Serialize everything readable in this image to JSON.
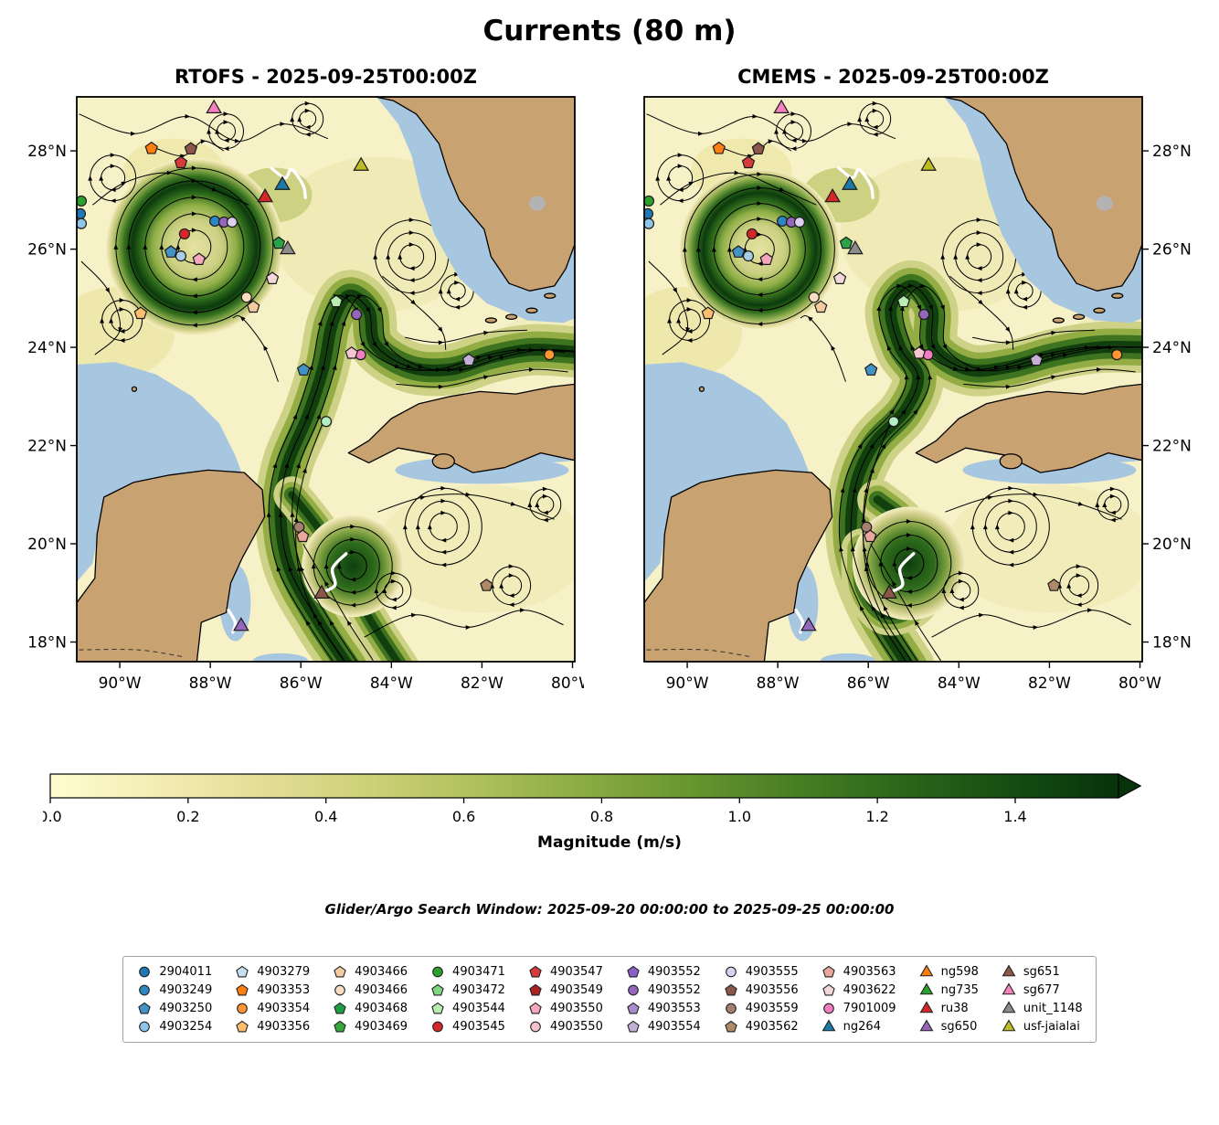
{
  "title": "Currents (80 m)",
  "panels": [
    {
      "title": "RTOFS - 2025-09-25T00:00Z"
    },
    {
      "title": "CMEMS - 2025-09-25T00:00Z"
    }
  ],
  "axes": {
    "lon_tick_labels": [
      "90°W",
      "88°W",
      "86°W",
      "84°W",
      "82°W",
      "80°W"
    ],
    "lon_tick_values": [
      -90,
      -88,
      -86,
      -84,
      -82,
      -80
    ],
    "lat_tick_labels": [
      "18°N",
      "20°N",
      "22°N",
      "24°N",
      "26°N",
      "28°N"
    ],
    "lat_tick_values": [
      18,
      20,
      22,
      24,
      26,
      28
    ],
    "lon_range": [
      -90.95,
      -79.95
    ],
    "lat_range": [
      17.6,
      29.1
    ]
  },
  "colorbar": {
    "label": "Magnitude (m/s)",
    "tick_labels": [
      "0.0",
      "0.2",
      "0.4",
      "0.6",
      "0.8",
      "1.0",
      "1.2",
      "1.4"
    ],
    "tick_values": [
      0.0,
      0.2,
      0.4,
      0.6,
      0.8,
      1.0,
      1.2,
      1.4
    ],
    "vmin": 0.0,
    "vmax": 1.55,
    "extend": "max",
    "colors": [
      "#fffdd0",
      "#f3edb4",
      "#e3dd96",
      "#cdd077",
      "#aec05b",
      "#8bab42",
      "#67952f",
      "#477e23",
      "#2b661a",
      "#154d12",
      "#07330b"
    ]
  },
  "search_window_text": "Glider/Argo Search Window: 2025-09-20 00:00:00 to 2025-09-25 00:00:00",
  "map_colors": {
    "ocean": "#a7c6e0",
    "land": "#c9a271",
    "coastline": "#000000",
    "field_low": "#f6f1c6",
    "no_data_gray": "#bdbdbd"
  },
  "legend": {
    "entries": [
      {
        "label": "2904011",
        "shape": "circle",
        "color": "#1f77b4"
      },
      {
        "label": "4903249",
        "shape": "circle",
        "color": "#2e86c1"
      },
      {
        "label": "4903250",
        "shape": "pentagon",
        "color": "#4292c6"
      },
      {
        "label": "4903254",
        "shape": "circle",
        "color": "#8fc6e8"
      },
      {
        "label": "4903279",
        "shape": "pentagon",
        "color": "#c6e2f0"
      },
      {
        "label": "4903353",
        "shape": "pentagon",
        "color": "#ff7f0e"
      },
      {
        "label": "4903354",
        "shape": "circle",
        "color": "#ff9633"
      },
      {
        "label": "4903356",
        "shape": "pentagon",
        "color": "#fdbf6f"
      },
      {
        "label": "4903466",
        "shape": "pentagon",
        "color": "#f3cba0"
      },
      {
        "label": "4903466",
        "shape": "circle",
        "color": "#f8ddc0"
      },
      {
        "label": "4903468",
        "shape": "pentagon",
        "color": "#1f9e44"
      },
      {
        "label": "4903469",
        "shape": "pentagon",
        "color": "#39a83c"
      },
      {
        "label": "4903471",
        "shape": "circle",
        "color": "#2ca02c"
      },
      {
        "label": "4903472",
        "shape": "pentagon",
        "color": "#7fd87f"
      },
      {
        "label": "4903544",
        "shape": "pentagon",
        "color": "#b8ecb0"
      },
      {
        "label": "4903545",
        "shape": "circle",
        "color": "#d62728"
      },
      {
        "label": "4903547",
        "shape": "pentagon",
        "color": "#d63a3a"
      },
      {
        "label": "4903549",
        "shape": "pentagon",
        "color": "#a82226"
      },
      {
        "label": "4903550",
        "shape": "pentagon",
        "color": "#f4a8bc"
      },
      {
        "label": "4903550",
        "shape": "circle",
        "color": "#f6c0cc"
      },
      {
        "label": "4903552",
        "shape": "pentagon",
        "color": "#8a5fc8"
      },
      {
        "label": "4903552",
        "shape": "circle",
        "color": "#9467bd"
      },
      {
        "label": "4903553",
        "shape": "pentagon",
        "color": "#a98ccc"
      },
      {
        "label": "4903554",
        "shape": "pentagon",
        "color": "#c5b0d5"
      },
      {
        "label": "4903555",
        "shape": "circle",
        "color": "#dcd0ee"
      },
      {
        "label": "4903556",
        "shape": "pentagon",
        "color": "#8c564b"
      },
      {
        "label": "4903559",
        "shape": "circle",
        "color": "#a57f6f"
      },
      {
        "label": "4903562",
        "shape": "pentagon",
        "color": "#b08968"
      },
      {
        "label": "4903563",
        "shape": "pentagon",
        "color": "#eaa79e"
      },
      {
        "label": "4903622",
        "shape": "pentagon",
        "color": "#f2d8da"
      },
      {
        "label": "7901009",
        "shape": "circle",
        "color": "#f07ec0"
      },
      {
        "label": "ng264",
        "shape": "triangle",
        "color": "#1b7aa8"
      },
      {
        "label": "ng598",
        "shape": "triangle",
        "color": "#ff7f0e"
      },
      {
        "label": "ng735",
        "shape": "triangle",
        "color": "#2ca02c"
      },
      {
        "label": "ru38",
        "shape": "triangle",
        "color": "#d62728"
      },
      {
        "label": "sg650",
        "shape": "triangle",
        "color": "#9467bd"
      },
      {
        "label": "sg651",
        "shape": "triangle",
        "color": "#8c564b"
      },
      {
        "label": "sg677",
        "shape": "triangle",
        "color": "#f781bf"
      },
      {
        "label": "unit_1148",
        "shape": "triangle",
        "color": "#8c8c8c"
      },
      {
        "label": "usf-jaialai",
        "shape": "triangle",
        "color": "#bcbd22"
      }
    ]
  },
  "chart_data": {
    "type": "heatmap",
    "subtype": "two-panel geographic streamline map of current speed (Gulf of Mexico / NW Caribbean)",
    "title": "Currents (80 m)",
    "panels": [
      {
        "title": "RTOFS - 2025-09-25T00:00Z",
        "model": "RTOFS",
        "valid_time": "2025-09-25T00:00Z"
      },
      {
        "title": "CMEMS - 2025-09-25T00:00Z",
        "model": "CMEMS",
        "valid_time": "2025-09-25T00:00Z"
      }
    ],
    "x_axis": {
      "tick_labels": [
        "90°W",
        "88°W",
        "86°W",
        "84°W",
        "82°W",
        "80°W"
      ],
      "tick_values_deg_east": [
        -90,
        -88,
        -86,
        -84,
        -82,
        -80
      ],
      "range_deg_east": [
        -90.95,
        -79.95
      ]
    },
    "y_axis": {
      "tick_labels": [
        "18°N",
        "20°N",
        "22°N",
        "24°N",
        "26°N",
        "28°N"
      ],
      "tick_values_deg_north": [
        18,
        20,
        22,
        24,
        26,
        28
      ],
      "range_deg_north": [
        17.6,
        29.1
      ]
    },
    "color_scale": {
      "label": "Magnitude (m/s)",
      "tick_values": [
        0.0,
        0.2,
        0.4,
        0.6,
        0.8,
        1.0,
        1.2,
        1.4
      ],
      "vmin": 0.0,
      "vmax_shown": 1.55,
      "extend": "max"
    },
    "visible_features": [
      "large anticyclonic eddy ring with speeds > 1.2 m/s centered near 88.3W 26N in both panels",
      "Loop Current jet entering through the Yucatan Channel near 86.5W 21.5N, meandering east along ~24N toward the Florida Straits",
      "strong current meander/eddy near 85W 19.5N in the NW Caribbean",
      "background speeds mostly below 0.3 m/s elsewhere"
    ],
    "platforms": [
      {
        "id": "sg677",
        "shape": "triangle",
        "color": "#f781bf",
        "lon": -87.92,
        "lat": 28.86
      },
      {
        "id": "4903353",
        "shape": "pentagon",
        "color": "#ff7f0e",
        "lon": -89.3,
        "lat": 28.05
      },
      {
        "id": "4903556",
        "shape": "pentagon",
        "color": "#8c564b",
        "lon": -88.43,
        "lat": 28.04
      },
      {
        "id": "4903547",
        "shape": "pentagon",
        "color": "#d63a3a",
        "lon": -88.65,
        "lat": 27.76
      },
      {
        "id": "usf-jaialai",
        "shape": "triangle",
        "color": "#bcbd22",
        "lon": -84.67,
        "lat": 27.69
      },
      {
        "id": "ng264",
        "shape": "triangle",
        "color": "#1b7aa8",
        "lon": -86.41,
        "lat": 27.3
      },
      {
        "id": "ru38",
        "shape": "triangle",
        "color": "#d62728",
        "lon": -86.79,
        "lat": 27.05
      },
      {
        "id": "4903471",
        "shape": "circle",
        "color": "#2ca02c",
        "lon": -90.85,
        "lat": 26.98
      },
      {
        "id": "2904011",
        "shape": "circle",
        "color": "#1f77b4",
        "lon": -90.87,
        "lat": 26.72
      },
      {
        "id": "4903254",
        "shape": "circle",
        "color": "#8fc6e8",
        "lon": -90.85,
        "lat": 26.52
      },
      {
        "id": "4903545",
        "shape": "circle",
        "color": "#d62728",
        "lon": -88.57,
        "lat": 26.31
      },
      {
        "id": "4903249",
        "shape": "circle",
        "color": "#2e86c1",
        "lon": -87.9,
        "lat": 26.57
      },
      {
        "id": "4903552",
        "shape": "circle",
        "color": "#9467bd",
        "lon": -87.7,
        "lat": 26.55
      },
      {
        "id": "4903555",
        "shape": "circle",
        "color": "#dcd0ee",
        "lon": -87.52,
        "lat": 26.55
      },
      {
        "id": "4903468",
        "shape": "pentagon",
        "color": "#27a348",
        "lon": -86.49,
        "lat": 26.12
      },
      {
        "id": "unit_1148",
        "shape": "triangle",
        "color": "#8c8c8c",
        "lon": -86.29,
        "lat": 25.99
      },
      {
        "id": "4903250",
        "shape": "pentagon",
        "color": "#4292c6",
        "lon": -88.87,
        "lat": 25.94
      },
      {
        "id": "4903254",
        "shape": "circle",
        "color": "#a6cee3",
        "lon": -88.65,
        "lat": 25.86
      },
      {
        "id": "4903550",
        "shape": "pentagon",
        "color": "#f4a8bc",
        "lon": -88.25,
        "lat": 25.79
      },
      {
        "id": "4903622",
        "shape": "pentagon",
        "color": "#f2d8da",
        "lon": -86.63,
        "lat": 25.4
      },
      {
        "id": "4903466",
        "shape": "circle",
        "color": "#f8ddc0",
        "lon": -87.2,
        "lat": 25.02
      },
      {
        "id": "4903466",
        "shape": "pentagon",
        "color": "#f3cba0",
        "lon": -87.05,
        "lat": 24.82
      },
      {
        "id": "4903356",
        "shape": "pentagon",
        "color": "#fdbf6f",
        "lon": -89.54,
        "lat": 24.69
      },
      {
        "id": "4903544",
        "shape": "pentagon",
        "color": "#b8ecb0",
        "lon": -85.22,
        "lat": 24.93
      },
      {
        "id": "4903552",
        "shape": "circle",
        "color": "#9467bd",
        "lon": -84.77,
        "lat": 24.67
      },
      {
        "id": "7901009",
        "shape": "circle",
        "color": "#f07ec0",
        "lon": -84.68,
        "lat": 23.85
      },
      {
        "id": "4903550",
        "shape": "pentagon",
        "color": "#f6c6d0",
        "lon": -84.88,
        "lat": 23.88
      },
      {
        "id": "4903250",
        "shape": "pentagon",
        "color": "#4292c6",
        "lon": -85.94,
        "lat": 23.54
      },
      {
        "id": "4903554",
        "shape": "pentagon",
        "color": "#c5b0d5",
        "lon": -82.29,
        "lat": 23.74
      },
      {
        "id": "4903354",
        "shape": "circle",
        "color": "#ff9633",
        "lon": -80.51,
        "lat": 23.85
      },
      {
        "id": "4903472",
        "shape": "circle",
        "color": "#b5eec6",
        "lon": -85.44,
        "lat": 22.49
      },
      {
        "id": "4903559",
        "shape": "circle",
        "color": "#a57f6f",
        "lon": -86.04,
        "lat": 20.34
      },
      {
        "id": "4903563",
        "shape": "pentagon",
        "color": "#eaa79e",
        "lon": -85.96,
        "lat": 20.15
      },
      {
        "id": "sg651",
        "shape": "triangle",
        "color": "#8c564b",
        "lon": -85.54,
        "lat": 18.98
      },
      {
        "id": "sg650",
        "shape": "triangle",
        "color": "#9467bd",
        "lon": -87.32,
        "lat": 18.32
      },
      {
        "id": "4903562",
        "shape": "pentagon",
        "color": "#b08968",
        "lon": -81.9,
        "lat": 19.15
      }
    ]
  }
}
